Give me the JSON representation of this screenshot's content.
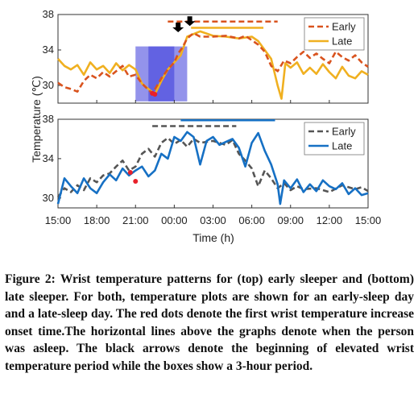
{
  "chart_data": [
    {
      "type": "line",
      "panel": "top",
      "xlim": [
        15,
        39
      ],
      "ylim": [
        28,
        38
      ],
      "yticks": [
        30,
        34,
        38
      ],
      "legend_position": "top-right",
      "colors": {
        "early": "#d9531e",
        "late": "#f0b020",
        "box": "#3b3bdb",
        "onset": "#e8202a",
        "arrow": "#000000"
      },
      "series": [
        {
          "name": "Early",
          "style": "dashed",
          "x": [
            15.0,
            15.5,
            16.0,
            16.5,
            17.0,
            17.5,
            18.0,
            18.5,
            19.0,
            19.5,
            20.0,
            20.5,
            21.0,
            21.5,
            22.0,
            22.3,
            22.6,
            23.0,
            23.5,
            24.0,
            24.3,
            24.6,
            25.0,
            25.5,
            26.0,
            27.0,
            28.0,
            29.0,
            29.5,
            30.0,
            30.5,
            31.0,
            31.5,
            32.0,
            32.5,
            33.0,
            33.5,
            34.0,
            34.5,
            35.0,
            35.5,
            36.0,
            36.5,
            37.0,
            37.5,
            38.0,
            38.5,
            39.0
          ],
          "y": [
            30.3,
            29.8,
            29.6,
            29.3,
            30.5,
            31.2,
            30.8,
            31.5,
            31.0,
            31.6,
            32.2,
            31.0,
            31.2,
            30.2,
            29.5,
            29.1,
            29.8,
            30.8,
            31.8,
            32.6,
            33.6,
            34.2,
            35.3,
            35.9,
            35.5,
            35.5,
            35.6,
            35.3,
            35.6,
            35.1,
            34.6,
            33.8,
            32.2,
            31.6,
            32.8,
            32.5,
            33.2,
            33.8,
            33.1,
            33.6,
            33.0,
            32.5,
            33.8,
            33.2,
            32.8,
            33.4,
            32.6,
            32.1
          ]
        },
        {
          "name": "Late",
          "style": "solid",
          "x": [
            15.0,
            15.5,
            16.0,
            16.5,
            17.0,
            17.5,
            18.0,
            18.5,
            19.0,
            19.5,
            20.0,
            20.5,
            21.0,
            21.5,
            22.0,
            22.5,
            23.0,
            23.5,
            24.0,
            24.5,
            25.0,
            25.5,
            26.0,
            27.0,
            28.0,
            29.0,
            30.0,
            30.5,
            31.0,
            31.5,
            32.0,
            32.3,
            32.6,
            33.0,
            33.5,
            34.0,
            34.5,
            35.0,
            35.5,
            36.0,
            36.5,
            37.0,
            37.5,
            38.0,
            38.5,
            39.0
          ],
          "y": [
            33.0,
            32.2,
            31.8,
            32.3,
            31.2,
            32.6,
            31.8,
            32.2,
            31.4,
            32.5,
            31.7,
            32.3,
            31.8,
            30.2,
            29.6,
            29.0,
            30.5,
            31.8,
            32.6,
            33.4,
            35.5,
            35.8,
            36.1,
            35.6,
            35.5,
            35.3,
            35.5,
            35.0,
            34.0,
            33.0,
            30.0,
            28.5,
            32.5,
            32.0,
            32.6,
            31.3,
            32.0,
            31.3,
            32.4,
            31.5,
            30.8,
            32.1,
            31.1,
            30.8,
            31.6,
            31.2
          ]
        }
      ],
      "sleep_lines": [
        {
          "series": "Early",
          "start": 23.5,
          "end": 32.0,
          "y": 37.2
        },
        {
          "series": "Late",
          "start": 25.3,
          "end": 30.9,
          "y": 36.5
        }
      ],
      "onset_points": [
        {
          "series": "Early",
          "x": 22.3,
          "y": 29.1
        },
        {
          "series": "Late",
          "x": 22.5,
          "y": 29.0
        }
      ],
      "arrows": [
        {
          "x": 24.3,
          "y": 36.0
        },
        {
          "x": 25.2,
          "y": 36.7
        }
      ],
      "boxes": [
        {
          "start": 21.0,
          "end": 24.0,
          "ylim": [
            28.2,
            34.4
          ]
        },
        {
          "start": 22.0,
          "end": 25.0,
          "ylim": [
            28.2,
            34.4
          ]
        }
      ]
    },
    {
      "type": "line",
      "panel": "bottom",
      "xlim": [
        15,
        39
      ],
      "ylim": [
        29,
        38
      ],
      "yticks": [
        30,
        34,
        38
      ],
      "legend_position": "top-right",
      "colors": {
        "early": "#555555",
        "late": "#1670c4",
        "onset": "#e8202a"
      },
      "series": [
        {
          "name": "Early",
          "style": "dashed",
          "x": [
            15.0,
            15.5,
            16.0,
            16.5,
            17.0,
            17.5,
            18.0,
            18.5,
            19.0,
            19.5,
            20.0,
            20.5,
            21.0,
            21.5,
            22.0,
            22.5,
            23.0,
            23.5,
            24.0,
            24.5,
            25.0,
            25.5,
            26.0,
            27.0,
            28.0,
            28.5,
            29.0,
            29.5,
            30.0,
            30.5,
            31.0,
            31.5,
            32.0,
            32.5,
            33.0,
            33.5,
            34.0,
            35.0,
            36.0,
            37.0,
            38.0,
            38.5,
            39.0
          ],
          "y": [
            30.1,
            31.0,
            30.6,
            31.3,
            30.8,
            32.0,
            31.6,
            32.3,
            32.5,
            33.2,
            33.8,
            32.8,
            33.2,
            34.5,
            35.0,
            34.2,
            35.6,
            36.1,
            35.5,
            35.9,
            35.2,
            36.0,
            35.6,
            35.8,
            35.4,
            35.9,
            34.5,
            33.8,
            33.0,
            31.2,
            32.8,
            32.0,
            31.0,
            31.5,
            30.8,
            31.2,
            30.9,
            31.0,
            30.6,
            31.3,
            30.9,
            31.1,
            30.7
          ]
        },
        {
          "name": "Late",
          "style": "solid",
          "x": [
            15.0,
            15.5,
            16.0,
            16.5,
            17.0,
            17.5,
            18.0,
            18.5,
            19.0,
            19.5,
            20.0,
            20.5,
            21.0,
            21.5,
            22.0,
            22.5,
            23.0,
            23.5,
            24.0,
            24.5,
            25.0,
            25.5,
            26.0,
            26.5,
            27.0,
            27.5,
            28.0,
            28.5,
            29.0,
            29.5,
            30.0,
            30.5,
            31.0,
            31.5,
            32.0,
            32.2,
            32.5,
            33.0,
            33.5,
            34.0,
            34.5,
            35.0,
            35.5,
            36.0,
            36.5,
            37.0,
            37.5,
            38.0,
            38.5,
            39.0
          ],
          "y": [
            29.4,
            32.0,
            31.2,
            30.5,
            32.0,
            31.0,
            30.5,
            31.6,
            32.4,
            31.8,
            33.0,
            32.3,
            32.8,
            33.2,
            32.2,
            32.8,
            34.5,
            34.0,
            36.2,
            35.8,
            36.7,
            36.2,
            33.4,
            35.8,
            36.2,
            35.4,
            35.7,
            36.0,
            35.1,
            33.2,
            35.6,
            36.6,
            34.8,
            33.4,
            31.4,
            29.4,
            31.8,
            31.0,
            31.9,
            30.6,
            31.4,
            30.7,
            31.8,
            31.2,
            30.9,
            31.5,
            30.4,
            31.0,
            30.3,
            30.5
          ]
        }
      ],
      "sleep_lines": [
        {
          "series": "Early",
          "start": 22.3,
          "end": 28.8,
          "y": 37.3
        },
        {
          "series": "Late",
          "start": 24.5,
          "end": 31.8,
          "y": 37.9
        }
      ],
      "onset_points": [
        {
          "series": "Early",
          "x": 20.6,
          "y": 32.6
        },
        {
          "series": "Late",
          "x": 21.0,
          "y": 31.7
        }
      ]
    }
  ],
  "axes": {
    "ylabel": "Temperature (℃)",
    "xlabel": "Time (h)",
    "xticks": [
      {
        "value": 15,
        "label": "15:00"
      },
      {
        "value": 18,
        "label": "18:00"
      },
      {
        "value": 21,
        "label": "21:00"
      },
      {
        "value": 24,
        "label": "00:00"
      },
      {
        "value": 27,
        "label": "03:00"
      },
      {
        "value": 30,
        "label": "06:00"
      },
      {
        "value": 33,
        "label": "09:00"
      },
      {
        "value": 36,
        "label": "12:00"
      },
      {
        "value": 39,
        "label": "15:00"
      }
    ]
  },
  "caption": {
    "label": "Figure 2:",
    "text": " Wrist temperature patterns for (top) early sleeper and (bottom) late sleeper. For both, temperature plots are shown for an early-sleep day and a late-sleep day. The red dots denote the first wrist temperature increase onset time.The horizontal lines above the graphs denote when the person was asleep. The black arrows denote the beginning of elevated wrist temperature period while the boxes show a 3-hour period."
  }
}
